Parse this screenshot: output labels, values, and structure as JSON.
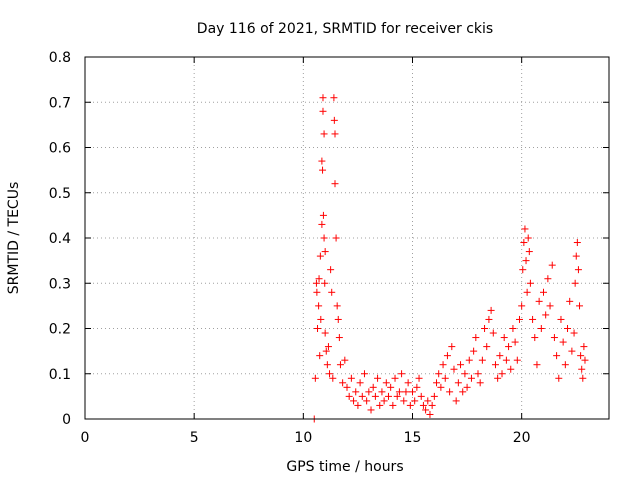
{
  "chart_data": {
    "type": "scatter",
    "title": "Day 116 of 2021, SRMTID for receiver ckis",
    "xlabel": "GPS time / hours",
    "ylabel": "SRMTID / TECUs",
    "xlim": [
      0,
      24
    ],
    "ylim": [
      0,
      0.8
    ],
    "xticks": [
      0,
      5,
      10,
      15,
      20
    ],
    "xtick_labels": [
      "0",
      "5",
      "10",
      "15",
      "20"
    ],
    "yticks": [
      0,
      0.1,
      0.2,
      0.3,
      0.4,
      0.5,
      0.6,
      0.7,
      0.8
    ],
    "ytick_labels": [
      "0",
      "0.1",
      "0.2",
      "0.3",
      "0.4",
      "0.5",
      "0.6",
      "0.7",
      "0.8"
    ],
    "grid": true,
    "marker": "+",
    "color": "#ff0000",
    "series": [
      {
        "name": "SRMTID",
        "points": [
          [
            10.5,
            0.0
          ],
          [
            10.55,
            0.09
          ],
          [
            10.6,
            0.3
          ],
          [
            10.62,
            0.28
          ],
          [
            10.65,
            0.2
          ],
          [
            10.7,
            0.25
          ],
          [
            10.72,
            0.31
          ],
          [
            10.75,
            0.14
          ],
          [
            10.78,
            0.36
          ],
          [
            10.8,
            0.22
          ],
          [
            10.85,
            0.43
          ],
          [
            10.85,
            0.57
          ],
          [
            10.88,
            0.55
          ],
          [
            10.9,
            0.68
          ],
          [
            10.9,
            0.71
          ],
          [
            10.92,
            0.45
          ],
          [
            10.95,
            0.63
          ],
          [
            10.95,
            0.4
          ],
          [
            10.98,
            0.3
          ],
          [
            11.0,
            0.37
          ],
          [
            11.0,
            0.19
          ],
          [
            11.05,
            0.15
          ],
          [
            11.1,
            0.12
          ],
          [
            11.15,
            0.16
          ],
          [
            11.2,
            0.1
          ],
          [
            11.25,
            0.33
          ],
          [
            11.3,
            0.28
          ],
          [
            11.35,
            0.09
          ],
          [
            11.4,
            0.71
          ],
          [
            11.42,
            0.66
          ],
          [
            11.45,
            0.63
          ],
          [
            11.45,
            0.52
          ],
          [
            11.5,
            0.4
          ],
          [
            11.55,
            0.25
          ],
          [
            11.6,
            0.22
          ],
          [
            11.65,
            0.18
          ],
          [
            11.7,
            0.12
          ],
          [
            11.8,
            0.08
          ],
          [
            11.9,
            0.13
          ],
          [
            12.0,
            0.07
          ],
          [
            12.1,
            0.05
          ],
          [
            12.2,
            0.09
          ],
          [
            12.3,
            0.04
          ],
          [
            12.4,
            0.06
          ],
          [
            12.5,
            0.03
          ],
          [
            12.6,
            0.08
          ],
          [
            12.7,
            0.05
          ],
          [
            12.8,
            0.1
          ],
          [
            12.9,
            0.04
          ],
          [
            13.0,
            0.06
          ],
          [
            13.1,
            0.02
          ],
          [
            13.2,
            0.07
          ],
          [
            13.3,
            0.05
          ],
          [
            13.4,
            0.09
          ],
          [
            13.5,
            0.03
          ],
          [
            13.6,
            0.06
          ],
          [
            13.7,
            0.04
          ],
          [
            13.8,
            0.08
          ],
          [
            13.9,
            0.05
          ],
          [
            14.0,
            0.07
          ],
          [
            14.1,
            0.03
          ],
          [
            14.2,
            0.09
          ],
          [
            14.3,
            0.05
          ],
          [
            14.4,
            0.06
          ],
          [
            14.5,
            0.1
          ],
          [
            14.6,
            0.04
          ],
          [
            14.7,
            0.06
          ],
          [
            14.8,
            0.08
          ],
          [
            14.9,
            0.03
          ],
          [
            15.0,
            0.06
          ],
          [
            15.1,
            0.04
          ],
          [
            15.2,
            0.07
          ],
          [
            15.3,
            0.09
          ],
          [
            15.4,
            0.05
          ],
          [
            15.5,
            0.03
          ],
          [
            15.6,
            0.02
          ],
          [
            15.7,
            0.04
          ],
          [
            15.8,
            0.01
          ],
          [
            15.9,
            0.03
          ],
          [
            16.0,
            0.05
          ],
          [
            16.1,
            0.08
          ],
          [
            16.2,
            0.1
          ],
          [
            16.3,
            0.07
          ],
          [
            16.4,
            0.12
          ],
          [
            16.5,
            0.09
          ],
          [
            16.6,
            0.14
          ],
          [
            16.7,
            0.06
          ],
          [
            16.8,
            0.16
          ],
          [
            16.9,
            0.11
          ],
          [
            17.0,
            0.04
          ],
          [
            17.1,
            0.08
          ],
          [
            17.2,
            0.12
          ],
          [
            17.3,
            0.06
          ],
          [
            17.4,
            0.1
          ],
          [
            17.5,
            0.07
          ],
          [
            17.6,
            0.13
          ],
          [
            17.7,
            0.09
          ],
          [
            17.8,
            0.15
          ],
          [
            17.9,
            0.18
          ],
          [
            18.0,
            0.1
          ],
          [
            18.1,
            0.08
          ],
          [
            18.2,
            0.13
          ],
          [
            18.3,
            0.2
          ],
          [
            18.4,
            0.16
          ],
          [
            18.5,
            0.22
          ],
          [
            18.6,
            0.24
          ],
          [
            18.7,
            0.19
          ],
          [
            18.8,
            0.12
          ],
          [
            18.9,
            0.09
          ],
          [
            19.0,
            0.14
          ],
          [
            19.1,
            0.1
          ],
          [
            19.2,
            0.18
          ],
          [
            19.3,
            0.13
          ],
          [
            19.4,
            0.16
          ],
          [
            19.5,
            0.11
          ],
          [
            19.6,
            0.2
          ],
          [
            19.7,
            0.17
          ],
          [
            19.8,
            0.13
          ],
          [
            19.9,
            0.22
          ],
          [
            20.0,
            0.25
          ],
          [
            20.05,
            0.33
          ],
          [
            20.1,
            0.39
          ],
          [
            20.15,
            0.42
          ],
          [
            20.2,
            0.35
          ],
          [
            20.25,
            0.28
          ],
          [
            20.3,
            0.4
          ],
          [
            20.35,
            0.37
          ],
          [
            20.4,
            0.3
          ],
          [
            20.5,
            0.22
          ],
          [
            20.6,
            0.18
          ],
          [
            20.7,
            0.12
          ],
          [
            20.8,
            0.26
          ],
          [
            20.9,
            0.2
          ],
          [
            21.0,
            0.28
          ],
          [
            21.1,
            0.23
          ],
          [
            21.2,
            0.31
          ],
          [
            21.3,
            0.25
          ],
          [
            21.4,
            0.34
          ],
          [
            21.5,
            0.18
          ],
          [
            21.6,
            0.14
          ],
          [
            21.7,
            0.09
          ],
          [
            21.8,
            0.22
          ],
          [
            21.9,
            0.17
          ],
          [
            22.0,
            0.12
          ],
          [
            22.1,
            0.2
          ],
          [
            22.2,
            0.26
          ],
          [
            22.3,
            0.15
          ],
          [
            22.4,
            0.19
          ],
          [
            22.45,
            0.3
          ],
          [
            22.5,
            0.36
          ],
          [
            22.55,
            0.39
          ],
          [
            22.6,
            0.33
          ],
          [
            22.65,
            0.25
          ],
          [
            22.7,
            0.14
          ],
          [
            22.75,
            0.11
          ],
          [
            22.8,
            0.09
          ],
          [
            22.85,
            0.16
          ],
          [
            22.9,
            0.13
          ]
        ]
      }
    ]
  }
}
